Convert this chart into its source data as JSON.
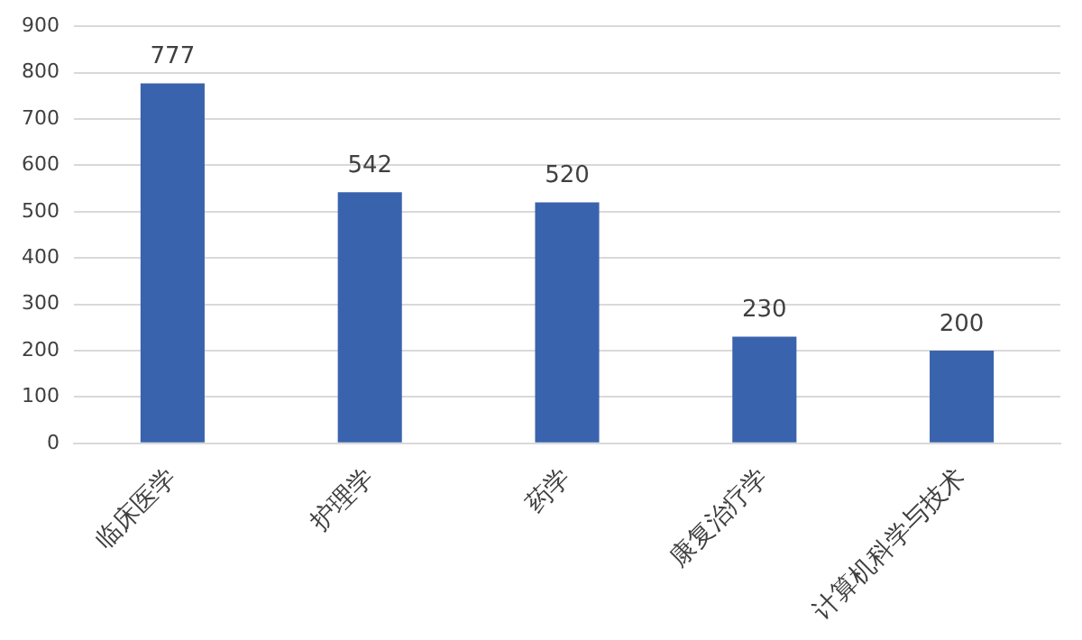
{
  "chart_data": {
    "type": "bar",
    "categories": [
      "临床医学",
      "护理学",
      "药学",
      "康复治疗学",
      "计算机科学与技术"
    ],
    "values": [
      777,
      542,
      520,
      230,
      200
    ],
    "color": "#3a63ad",
    "ylim": [
      0,
      900
    ],
    "yticks": [
      0,
      100,
      200,
      300,
      400,
      500,
      600,
      700,
      800,
      900
    ],
    "grid": "y",
    "data_labels": true
  }
}
